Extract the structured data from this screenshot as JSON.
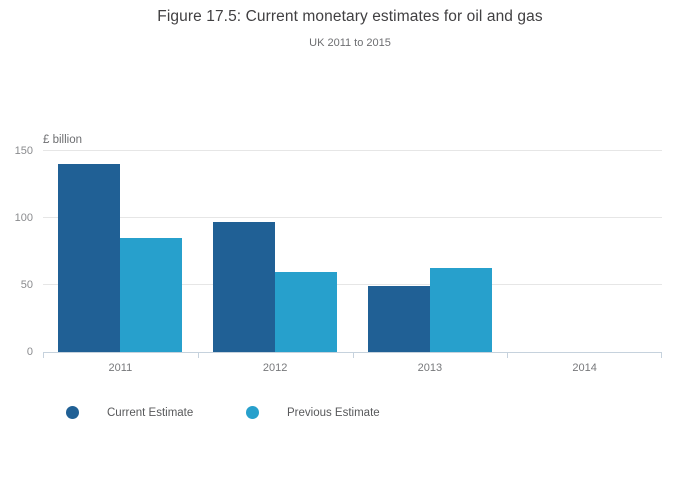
{
  "title": "Figure 17.5: Current monetary estimates for oil and gas",
  "subtitle": "UK 2011 to 2015",
  "chart_data": {
    "type": "bar",
    "title": "Figure 17.5: Current monetary estimates for oil and gas",
    "subtitle": "UK 2011 to 2015",
    "categories": [
      "2011",
      "2012",
      "2013",
      "2014"
    ],
    "series": [
      {
        "name": "Current Estimate",
        "color": "#206095",
        "values": [
          140,
          97,
          49,
          null
        ]
      },
      {
        "name": "Previous Estimate",
        "color": "#27A0CC",
        "values": [
          85,
          60,
          63,
          null
        ]
      }
    ],
    "xlabel": "",
    "ylabel": "£ billion",
    "yticks": [
      0,
      50,
      100,
      150
    ],
    "ylim": [
      0,
      150
    ],
    "grid": true,
    "legend_position": "bottom",
    "gridline_color": "#e6e6e6",
    "axis_color": "#c6d2dd",
    "tick_label_color": "#8a8b8e"
  }
}
